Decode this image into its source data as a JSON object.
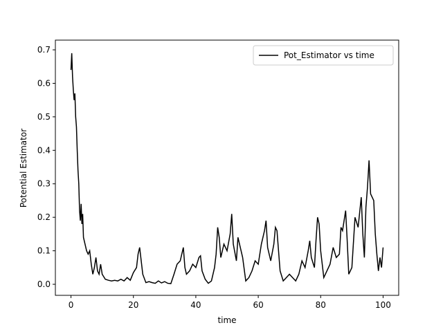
{
  "chart_data": {
    "type": "line",
    "xlabel": "time",
    "ylabel": "Potential Estimator",
    "x": [
      0,
      0.25,
      0.5,
      0.75,
      1,
      1.25,
      1.5,
      1.75,
      2,
      2.25,
      2.5,
      2.75,
      3,
      3.25,
      3.5,
      3.75,
      4,
      4.5,
      5,
      5.5,
      6,
      6.5,
      7,
      7.5,
      8,
      8.5,
      9,
      9.5,
      10,
      11,
      12,
      13,
      14,
      15,
      16,
      17,
      18,
      19,
      20,
      21,
      21.5,
      22,
      22.5,
      23,
      24,
      25,
      26,
      27,
      28,
      29,
      30,
      31,
      32,
      33,
      34,
      35,
      35.5,
      36,
      36.5,
      37,
      38,
      39,
      40,
      41,
      41.5,
      42,
      43,
      44,
      45,
      46,
      46.5,
      47,
      47.5,
      48,
      49,
      50,
      51,
      51.5,
      52,
      53,
      53.5,
      54,
      55,
      56,
      57,
      58,
      59,
      60,
      61,
      62,
      62.5,
      63,
      64,
      65,
      65.5,
      66,
      67,
      68,
      69,
      70,
      71,
      72,
      73,
      74,
      75,
      76,
      76.5,
      77,
      78,
      78.5,
      79,
      79.5,
      80,
      81,
      82,
      83,
      84,
      85,
      86,
      86.5,
      87,
      88,
      88.5,
      89,
      90,
      91,
      92,
      93,
      93.5,
      94,
      94.5,
      95,
      95.5,
      96,
      97,
      97.5,
      98,
      98.5,
      99,
      99.5,
      100
    ],
    "series": [
      {
        "name": "Pot_Estimator vs time",
        "color": "#000000",
        "values": [
          0.64,
          0.69,
          0.62,
          0.58,
          0.55,
          0.57,
          0.5,
          0.47,
          0.4,
          0.34,
          0.3,
          0.22,
          0.19,
          0.24,
          0.18,
          0.21,
          0.14,
          0.12,
          0.1,
          0.09,
          0.1,
          0.06,
          0.03,
          0.05,
          0.08,
          0.04,
          0.03,
          0.06,
          0.03,
          0.015,
          0.012,
          0.01,
          0.012,
          0.01,
          0.015,
          0.01,
          0.02,
          0.012,
          0.035,
          0.05,
          0.09,
          0.11,
          0.07,
          0.03,
          0.005,
          0.008,
          0.005,
          0.003,
          0.01,
          0.004,
          0.008,
          0.003,
          0.002,
          0.03,
          0.06,
          0.07,
          0.09,
          0.11,
          0.05,
          0.03,
          0.04,
          0.06,
          0.05,
          0.08,
          0.085,
          0.04,
          0.015,
          0.003,
          0.01,
          0.05,
          0.09,
          0.17,
          0.14,
          0.08,
          0.12,
          0.1,
          0.15,
          0.21,
          0.12,
          0.07,
          0.14,
          0.12,
          0.08,
          0.01,
          0.02,
          0.04,
          0.07,
          0.06,
          0.12,
          0.16,
          0.19,
          0.11,
          0.07,
          0.12,
          0.17,
          0.16,
          0.04,
          0.01,
          0.02,
          0.03,
          0.02,
          0.01,
          0.03,
          0.07,
          0.05,
          0.1,
          0.13,
          0.08,
          0.05,
          0.13,
          0.2,
          0.18,
          0.1,
          0.02,
          0.04,
          0.06,
          0.11,
          0.08,
          0.09,
          0.17,
          0.16,
          0.22,
          0.13,
          0.03,
          0.05,
          0.2,
          0.17,
          0.26,
          0.15,
          0.08,
          0.23,
          0.29,
          0.37,
          0.27,
          0.25,
          0.15,
          0.09,
          0.04,
          0.08,
          0.05,
          0.11
        ]
      }
    ],
    "xlim": [
      -5,
      105
    ],
    "ylim": [
      -0.033,
      0.729
    ],
    "xticks": [
      0,
      20,
      40,
      60,
      80,
      100
    ],
    "yticks": [
      {
        "value": 0,
        "label": "0.0"
      },
      0.1,
      0.2,
      0.3,
      0.4,
      0.5,
      0.6,
      0.7
    ],
    "legend": "upper right"
  }
}
